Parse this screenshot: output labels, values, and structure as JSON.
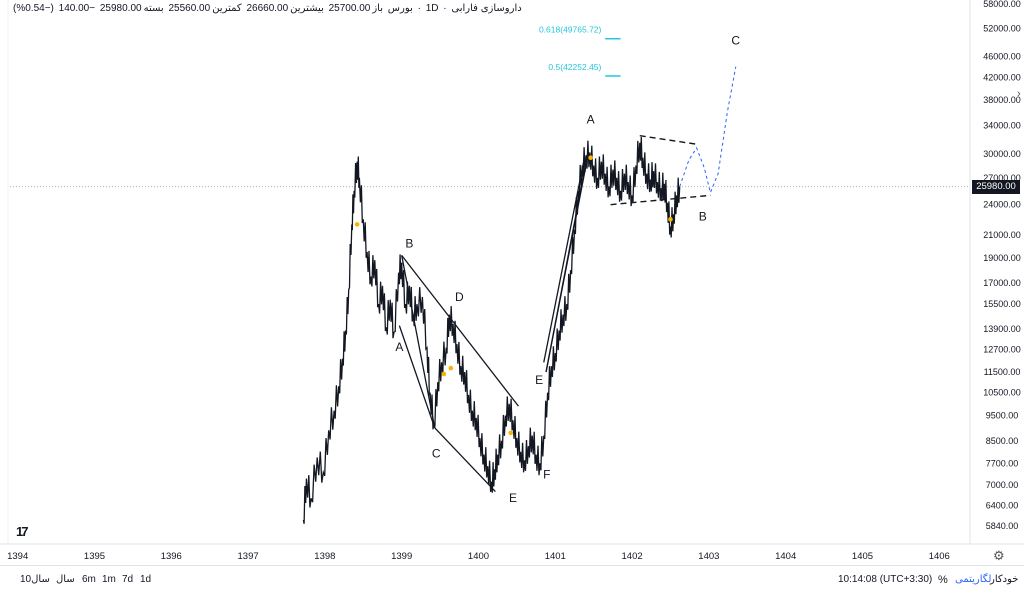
{
  "header": {
    "symbol": "داروسازی فارابی",
    "timeframe": "1D",
    "exchange": "بورس",
    "open_label": "باز",
    "open_value": "25700.00",
    "high_label": "بیشترین",
    "high_value": "26660.00",
    "low_label": "کمترین",
    "low_value": "25560.00",
    "close_label": "بسته",
    "close_value": "25980.00",
    "change": "−140.00",
    "change_pct": "(−0.54%)"
  },
  "price_tag": "25980.00",
  "chart_data": {
    "type": "line",
    "title": "",
    "y_scale": "log",
    "x_ticks": [
      "1394",
      "1395",
      "1396",
      "1397",
      "1398",
      "1399",
      "1400",
      "1401",
      "1402",
      "1403",
      "1404",
      "1405",
      "1406"
    ],
    "y_ticks": [
      5840,
      6400,
      7000,
      7700,
      8500,
      9500,
      10500,
      11500,
      12700,
      13900,
      15500,
      17000,
      19000,
      21000,
      24000,
      27000,
      30000,
      34000,
      38000,
      42000,
      46000,
      52000,
      58000
    ],
    "y_tick_labels": [
      "5840.00",
      "6400.00",
      "7000.00",
      "7700.00",
      "8500.00",
      "9500.00",
      "10500.00",
      "11500.00",
      "12700.00",
      "13900.00",
      "15500.00",
      "17000.00",
      "19000.00",
      "21000.00",
      "24000.00",
      "27000.00",
      "30000.00",
      "34000.00",
      "38000.00",
      "42000.00",
      "46000.00",
      "52000.00",
      "58000.00"
    ],
    "ylim": [
      5400,
      59000
    ],
    "xlim": [
      1393.9,
      1406.4
    ],
    "last_price": 25980,
    "series": [
      {
        "points": [
          [
            1397.72,
            6000
          ],
          [
            1397.76,
            7200
          ],
          [
            1397.82,
            6600
          ],
          [
            1397.9,
            7900
          ],
          [
            1397.98,
            7400
          ],
          [
            1398.05,
            8900
          ],
          [
            1398.12,
            9700
          ],
          [
            1398.18,
            10800
          ],
          [
            1398.23,
            12200
          ],
          [
            1398.27,
            13800
          ],
          [
            1398.31,
            16500
          ],
          [
            1398.35,
            22000
          ],
          [
            1398.38,
            25500
          ],
          [
            1398.42,
            29000
          ],
          [
            1398.45,
            27000
          ],
          [
            1398.5,
            22500
          ],
          [
            1398.55,
            19500
          ],
          [
            1398.6,
            17500
          ],
          [
            1398.65,
            18800
          ],
          [
            1398.7,
            15500
          ],
          [
            1398.75,
            16800
          ],
          [
            1398.8,
            14000
          ],
          [
            1398.85,
            15800
          ],
          [
            1398.9,
            13700
          ],
          [
            1398.96,
            17800
          ],
          [
            1399.0,
            18600
          ],
          [
            1399.05,
            15500
          ],
          [
            1399.1,
            16800
          ],
          [
            1399.15,
            14800
          ],
          [
            1399.2,
            15500
          ],
          [
            1399.27,
            16000
          ],
          [
            1399.33,
            12800
          ],
          [
            1399.37,
            10500
          ],
          [
            1399.42,
            9200
          ],
          [
            1399.47,
            11000
          ],
          [
            1399.52,
            12000
          ],
          [
            1399.58,
            12800
          ],
          [
            1399.62,
            14800
          ],
          [
            1399.67,
            14200
          ],
          [
            1399.72,
            13000
          ],
          [
            1399.77,
            11800
          ],
          [
            1399.82,
            11500
          ],
          [
            1399.87,
            10400
          ],
          [
            1399.92,
            9700
          ],
          [
            1399.97,
            9400
          ],
          [
            1400.02,
            8600
          ],
          [
            1400.07,
            8000
          ],
          [
            1400.12,
            7600
          ],
          [
            1400.17,
            7100
          ],
          [
            1400.21,
            7500
          ],
          [
            1400.25,
            8000
          ],
          [
            1400.3,
            8500
          ],
          [
            1400.35,
            9500
          ],
          [
            1400.4,
            10000
          ],
          [
            1400.45,
            9300
          ],
          [
            1400.5,
            8600
          ],
          [
            1400.55,
            8100
          ],
          [
            1400.6,
            7800
          ],
          [
            1400.65,
            8300
          ],
          [
            1400.7,
            8700
          ],
          [
            1400.75,
            8000
          ],
          [
            1400.8,
            7700
          ],
          [
            1400.85,
            8700
          ],
          [
            1400.9,
            10500
          ],
          [
            1400.95,
            11800
          ],
          [
            1401.0,
            12500
          ],
          [
            1401.05,
            13800
          ],
          [
            1401.1,
            14800
          ],
          [
            1401.15,
            15500
          ],
          [
            1401.2,
            18000
          ],
          [
            1401.25,
            21500
          ],
          [
            1401.3,
            25500
          ],
          [
            1401.35,
            28500
          ],
          [
            1401.4,
            29800
          ],
          [
            1401.45,
            30200
          ],
          [
            1401.5,
            28500
          ],
          [
            1401.55,
            27000
          ],
          [
            1401.6,
            29000
          ],
          [
            1401.65,
            27500
          ],
          [
            1401.7,
            26000
          ],
          [
            1401.75,
            28000
          ],
          [
            1401.8,
            27000
          ],
          [
            1401.85,
            25500
          ],
          [
            1401.9,
            27500
          ],
          [
            1401.95,
            26500
          ],
          [
            1402.0,
            25000
          ],
          [
            1402.05,
            28500
          ],
          [
            1402.1,
            31500
          ],
          [
            1402.14,
            29500
          ],
          [
            1402.19,
            27500
          ],
          [
            1402.24,
            26800
          ],
          [
            1402.28,
            27800
          ],
          [
            1402.33,
            26500
          ],
          [
            1402.38,
            25800
          ],
          [
            1402.42,
            26300
          ],
          [
            1402.46,
            24200
          ],
          [
            1402.5,
            21800
          ],
          [
            1402.54,
            23000
          ],
          [
            1402.58,
            25000
          ],
          [
            1402.62,
            25980
          ]
        ]
      }
    ],
    "projection": [
      [
        1402.62,
        25980
      ],
      [
        1402.74,
        29200
      ],
      [
        1402.84,
        30800
      ],
      [
        1402.94,
        28200
      ],
      [
        1403.02,
        25300
      ],
      [
        1403.12,
        27500
      ],
      [
        1403.24,
        36000
      ],
      [
        1403.35,
        44000
      ]
    ],
    "fib_levels": [
      {
        "label": "0.618(49765.72)",
        "value": 49765.72
      },
      {
        "label": "0.5(42252.45)",
        "value": 42252.45
      }
    ],
    "wave_labels": [
      {
        "text": "A",
        "x": 1398.97,
        "y": 12600
      },
      {
        "text": "B",
        "x": 1399.1,
        "y": 19900
      },
      {
        "text": "C",
        "x": 1399.45,
        "y": 7900
      },
      {
        "text": "D",
        "x": 1399.75,
        "y": 15700
      },
      {
        "text": "E",
        "x": 1400.45,
        "y": 6500
      },
      {
        "text": "E",
        "x": 1400.79,
        "y": 10900
      },
      {
        "text": "F",
        "x": 1400.89,
        "y": 7200
      },
      {
        "text": "A",
        "x": 1401.46,
        "y": 34300
      },
      {
        "text": "B",
        "x": 1402.92,
        "y": 22400
      },
      {
        "text": "C",
        "x": 1403.35,
        "y": 48500
      }
    ]
  },
  "footer": {
    "timeframes": [
      "10سال",
      "سال",
      "6m",
      "1m",
      "7d",
      "1d"
    ],
    "time": "10:14:08 (UTC+3:30)",
    "percent": "%",
    "log": "لگاریتمی",
    "auto": "خودکار"
  }
}
